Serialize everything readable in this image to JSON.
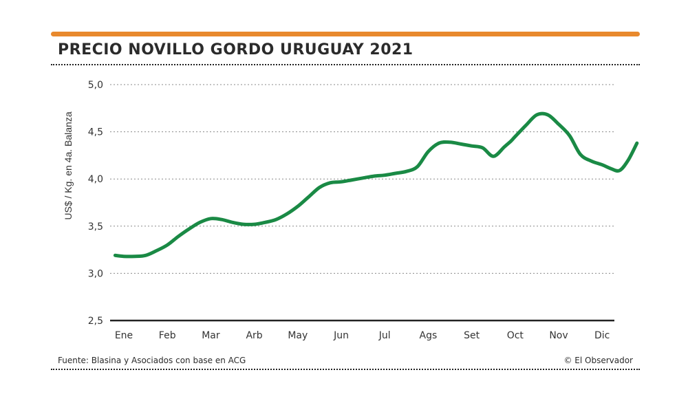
{
  "header": {
    "title": "PRECIO NOVILLO GORDO URUGUAY 2021"
  },
  "footer": {
    "source": "Fuente: Blasina y Asociados con base en ACG",
    "credit": "© El Observador"
  },
  "colors": {
    "accent_bar": "#e8892d",
    "line": "#1a8a45",
    "grid": "#888888",
    "axis": "#222222"
  },
  "chart_data": {
    "type": "line",
    "title": "PRECIO NOVILLO GORDO URUGUAY 2021",
    "xlabel": "",
    "ylabel": "US$ / Kg. en 4a. Balanza",
    "ylim": [
      2.5,
      5.0
    ],
    "yticks": [
      2.5,
      3.0,
      3.5,
      4.0,
      4.5,
      5.0
    ],
    "ytick_labels": [
      "2,5",
      "3,0",
      "3,5",
      "4,0",
      "4,5",
      "5,0"
    ],
    "xlim": [
      0,
      11.5
    ],
    "categories": [
      "Ene",
      "Feb",
      "Mar",
      "Arb",
      "May",
      "Jun",
      "Jul",
      "Ags",
      "Set",
      "Oct",
      "Nov",
      "Dic"
    ],
    "grid": true,
    "series": [
      {
        "name": "Precio novillo gordo",
        "x": [
          -0.2,
          0.0,
          0.25,
          0.5,
          0.75,
          1.0,
          1.25,
          1.5,
          1.75,
          2.0,
          2.25,
          2.5,
          2.75,
          3.0,
          3.25,
          3.5,
          3.75,
          4.0,
          4.25,
          4.5,
          4.75,
          5.0,
          5.25,
          5.5,
          5.75,
          6.0,
          6.25,
          6.5,
          6.75,
          7.0,
          7.25,
          7.5,
          7.75,
          8.0,
          8.25,
          8.5,
          8.75,
          8.9,
          9.0,
          9.25,
          9.5,
          9.75,
          10.0,
          10.25,
          10.5,
          10.75,
          11.0,
          11.2,
          11.4
        ],
        "values": [
          3.19,
          3.18,
          3.18,
          3.19,
          3.24,
          3.3,
          3.39,
          3.47,
          3.54,
          3.58,
          3.57,
          3.54,
          3.52,
          3.52,
          3.54,
          3.57,
          3.63,
          3.71,
          3.81,
          3.91,
          3.96,
          3.97,
          3.99,
          4.01,
          4.03,
          4.04,
          4.06,
          4.08,
          4.13,
          4.29,
          4.38,
          4.39,
          4.37,
          4.35,
          4.33,
          4.24,
          4.34,
          4.4,
          4.45,
          4.57,
          4.68,
          4.68,
          4.58,
          4.46,
          4.26,
          4.19,
          4.15,
          4.11,
          4.09
        ]
      }
    ],
    "tail": {
      "x": [
        11.4,
        11.6,
        11.8
      ],
      "values": [
        4.09,
        4.2,
        4.38
      ]
    }
  }
}
